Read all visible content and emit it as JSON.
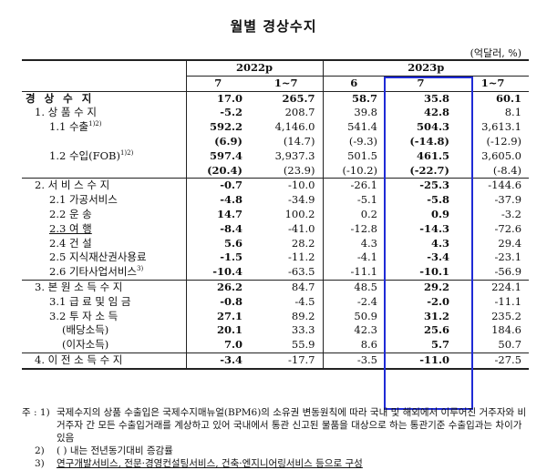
{
  "title": "월별 경상수지",
  "unit": "(억달러, %)",
  "header": {
    "year1": "2022p",
    "year2": "2023p",
    "cols": [
      "7",
      "1~7",
      "6",
      "7",
      "1~7"
    ]
  },
  "rows": [
    {
      "label": "경 상 수 지",
      "vals": [
        "17.0",
        "265.7",
        "58.7",
        "35.8",
        "60.1"
      ],
      "bold": true
    },
    {
      "label": "1. 상 품 수 지",
      "vals": [
        "-5.2",
        "208.7",
        "39.8",
        "42.8",
        "8.1"
      ],
      "bold": false
    },
    {
      "label": "1.1 수출",
      "sup": "1)2)",
      "vals": [
        "592.2",
        "4,146.0",
        "541.4",
        "504.3",
        "3,613.1"
      ],
      "bold": false
    },
    {
      "label": "",
      "vals": [
        "(6.9)",
        "(14.7)",
        "(-9.3)",
        "(-14.8)",
        "(-12.9)"
      ],
      "bold": false
    },
    {
      "label": "1.2 수입(FOB)",
      "sup": "1)2)",
      "vals": [
        "597.4",
        "3,937.3",
        "501.5",
        "461.5",
        "3,605.0"
      ],
      "bold": false
    },
    {
      "label": "",
      "vals": [
        "(20.4)",
        "(23.9)",
        "(-10.2)",
        "(-22.7)",
        "(-8.4)"
      ],
      "bold": false
    },
    {
      "label": "2. 서 비 스 수 지",
      "vals": [
        "-0.7",
        "-10.0",
        "-26.1",
        "-25.3",
        "-144.6"
      ],
      "bold": false
    },
    {
      "label": "2.1 가공서비스",
      "vals": [
        "-4.8",
        "-34.9",
        "-5.1",
        "-5.8",
        "-37.9"
      ],
      "bold": false
    },
    {
      "label": "2.2 운 송",
      "vals": [
        "14.7",
        "100.2",
        "0.2",
        "0.9",
        "-3.2"
      ],
      "bold": false
    },
    {
      "label": "2.3 여 행",
      "vals": [
        "-8.4",
        "-41.0",
        "-12.8",
        "-14.3",
        "-72.6"
      ],
      "bold": false
    },
    {
      "label": "2.4 건 설",
      "vals": [
        "5.6",
        "28.2",
        "4.3",
        "4.3",
        "29.4"
      ],
      "bold": false
    },
    {
      "label": "2.5 지식재산권사용료",
      "vals": [
        "-1.5",
        "-11.2",
        "-4.1",
        "-3.4",
        "-23.1"
      ],
      "bold": false
    },
    {
      "label": "2.6 기타사업서비스",
      "sup": "3)",
      "vals": [
        "-10.4",
        "-63.5",
        "-11.1",
        "-10.1",
        "-56.9"
      ],
      "bold": false
    },
    {
      "label": "3. 본 원 소 득 수 지",
      "vals": [
        "26.2",
        "84.7",
        "48.5",
        "29.2",
        "224.1"
      ],
      "bold": false
    },
    {
      "label": "3.1 급 료 및 임 금",
      "vals": [
        "-0.8",
        "-4.5",
        "-2.4",
        "-2.0",
        "-11.1"
      ],
      "bold": false
    },
    {
      "label": "3.2 투 자 소 득",
      "vals": [
        "27.1",
        "89.2",
        "50.9",
        "31.2",
        "235.2"
      ],
      "bold": false
    },
    {
      "label": "(배당소득)",
      "vals": [
        "20.1",
        "33.3",
        "42.3",
        "25.6",
        "184.6"
      ],
      "bold": false
    },
    {
      "label": "(이자소득)",
      "vals": [
        "7.0",
        "55.9",
        "8.6",
        "5.7",
        "50.7"
      ],
      "bold": false
    },
    {
      "label": "4. 이 전 소 득 수 지",
      "vals": [
        "-3.4",
        "-17.7",
        "-3.5",
        "-11.0",
        "-27.5"
      ],
      "bold": false
    }
  ],
  "notes": {
    "prefix": "주 :",
    "n1_num": "1)",
    "n1_text": "국제수지의 상품 수출입은 국제수지매뉴얼(BPM6)의 소유권 변동원칙에 따라 국내 및 해외에서 이루어진 거주자와 비거주자 간 모든 수출입거래를 계상하고 있어 국내에서 통관 신고된 물품을 대상으로 하는 통관기준 수출입과는 차이가 있음",
    "n2_num": "2)",
    "n2_text": "( ) 내는 전년동기대비 증감률",
    "n3_num": "3)",
    "n3_text": "연구개발서비스, 전문·경영컨설팅서비스, 건축·엔지니어링서비스 등으로 구성"
  }
}
